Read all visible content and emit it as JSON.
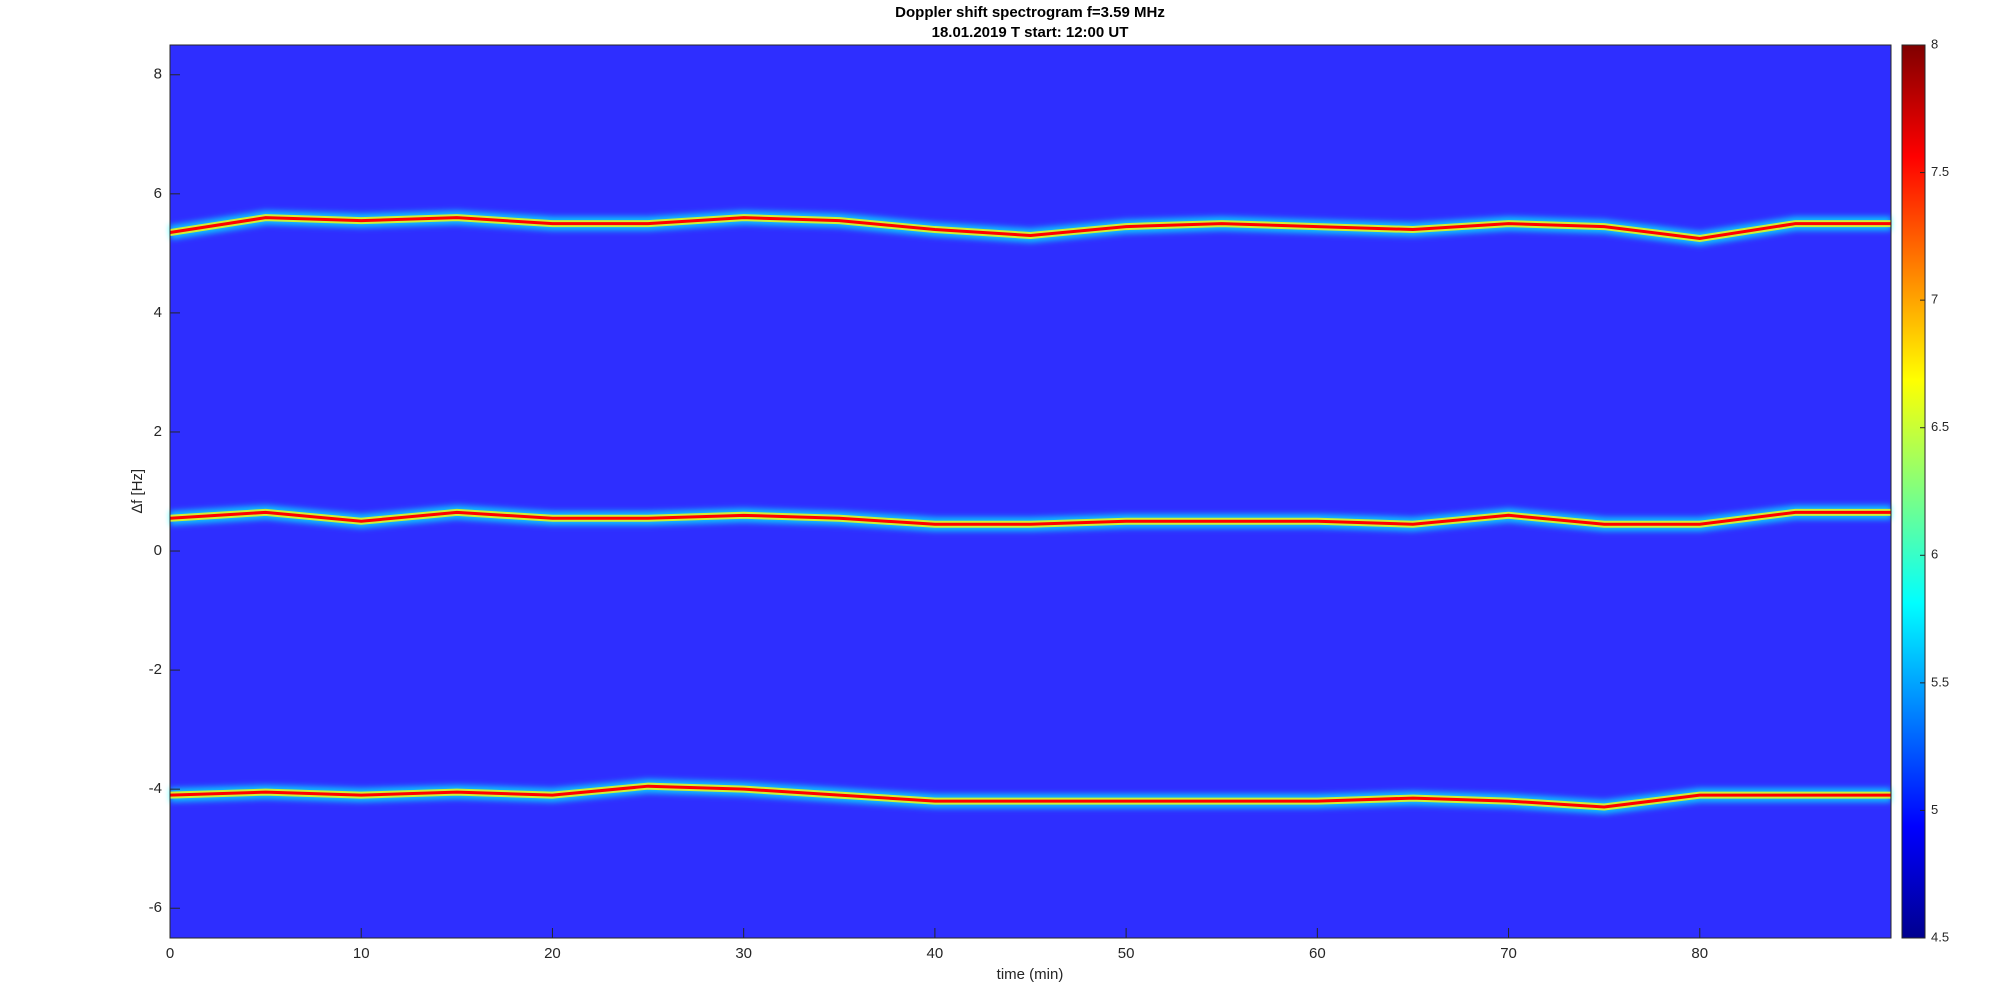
{
  "chart_data": {
    "type": "spectrogram",
    "title": "Doppler shift spectrogram f=3.59 MHz",
    "subtitle": "18.01.2019   T start: 12:00 UT",
    "x_label": "time (min)",
    "y_label": "∆f [Hz]",
    "xlim": [
      0,
      90
    ],
    "xticks": [
      0,
      10,
      20,
      30,
      40,
      50,
      60,
      70,
      80
    ],
    "ylim": [
      -6.5,
      8.5
    ],
    "yticks": [
      -6,
      -4,
      -2,
      0,
      2,
      4,
      6,
      8
    ],
    "clim": [
      4.5,
      8
    ],
    "cticks": [
      4.5,
      5,
      5.5,
      6,
      6.5,
      7,
      7.5,
      8
    ],
    "colormap": [
      "#00008f",
      "#0000ff",
      "#0080ff",
      "#00ffff",
      "#80ff80",
      "#ffff00",
      "#ff8000",
      "#ff0000",
      "#800000"
    ],
    "x": [
      0,
      5,
      10,
      15,
      20,
      25,
      30,
      35,
      40,
      45,
      50,
      55,
      60,
      65,
      70,
      75,
      80,
      85,
      90
    ],
    "series": [
      {
        "color": "#ff0000",
        "values": [
          5.35,
          5.6,
          5.55,
          5.6,
          5.5,
          5.5,
          5.6,
          5.55,
          5.4,
          5.3,
          5.45,
          5.5,
          5.45,
          5.4,
          5.5,
          5.45,
          5.25,
          5.5,
          5.5
        ]
      },
      {
        "color": "#ff0000",
        "values": [
          0.55,
          0.65,
          0.5,
          0.65,
          0.55,
          0.55,
          0.6,
          0.55,
          0.45,
          0.45,
          0.5,
          0.5,
          0.5,
          0.45,
          0.6,
          0.45,
          0.45,
          0.65,
          0.65
        ]
      },
      {
        "color": "#ff0000",
        "values": [
          -4.1,
          -4.05,
          -4.1,
          -4.05,
          -4.1,
          -3.95,
          -4.0,
          -4.1,
          -4.2,
          -4.2,
          -4.2,
          -4.2,
          -4.2,
          -4.15,
          -4.2,
          -4.3,
          -4.1,
          -4.1,
          -4.1
        ]
      }
    ]
  }
}
